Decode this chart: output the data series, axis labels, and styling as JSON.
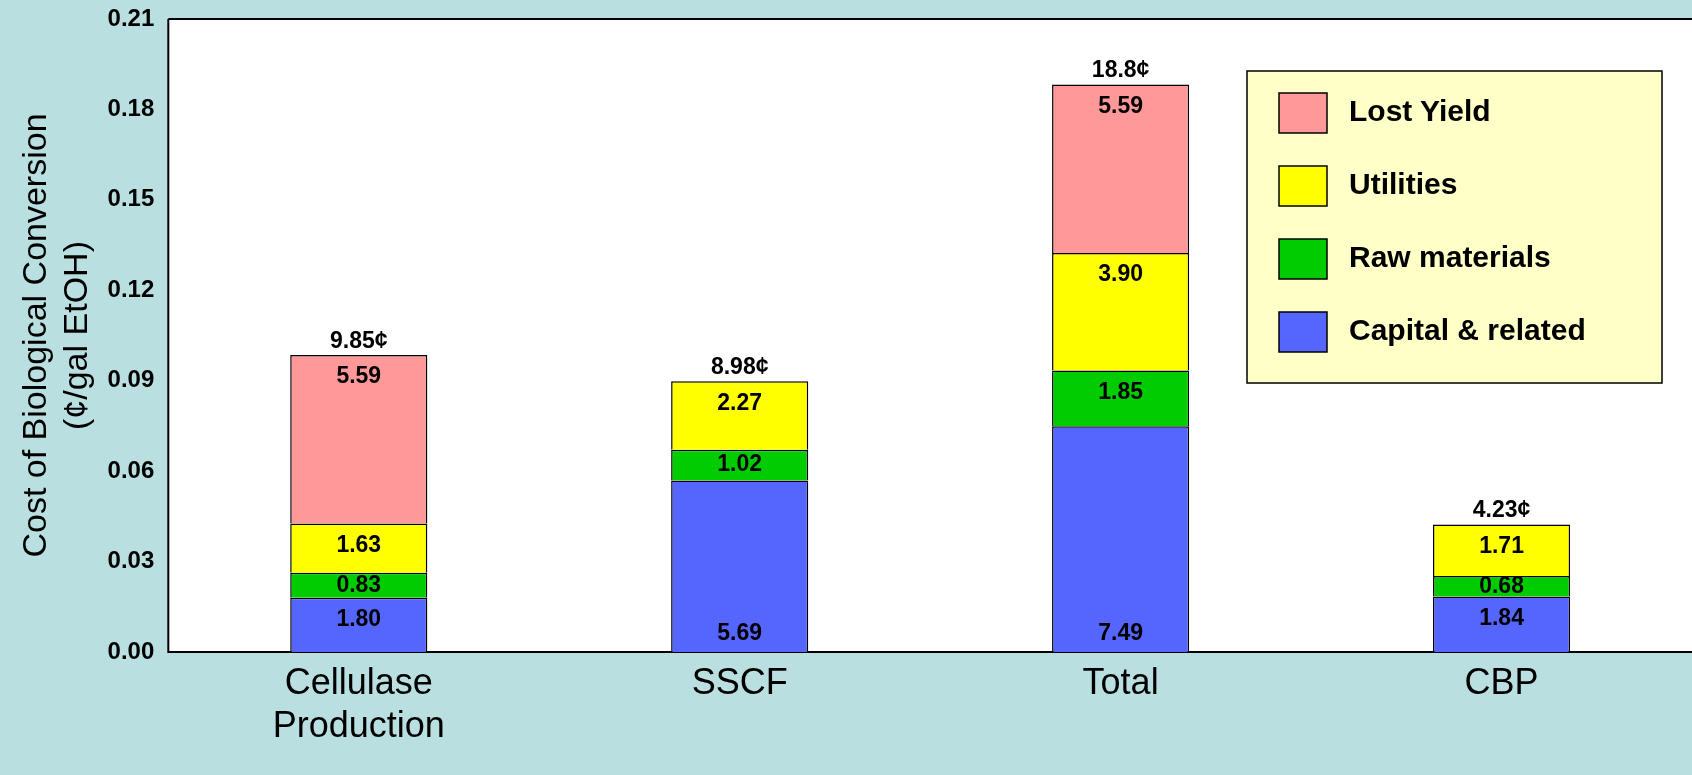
{
  "chart_data": {
    "type": "bar",
    "stacked": true,
    "ylabel": "Cost of Biological Conversion\n(¢/gal EtOH)",
    "categories": [
      "Cellulase\nProduction",
      "SSCF",
      "Total",
      "CBP"
    ],
    "series": [
      {
        "name": "Capital & related",
        "color": "#5566ff",
        "values": [
          0.018,
          0.0569,
          0.0749,
          0.0184
        ]
      },
      {
        "name": "Raw materials",
        "color": "#00cc00",
        "values": [
          0.0083,
          0.0102,
          0.0185,
          0.0068
        ]
      },
      {
        "name": "Utilities",
        "color": "#ffff00",
        "values": [
          0.0163,
          0.0227,
          0.039,
          0.0171
        ]
      },
      {
        "name": "Lost Yield",
        "color": "#ff9999",
        "values": [
          0.0559,
          null,
          0.0559,
          null
        ]
      }
    ],
    "annotations": [
      {
        "text": "1.80",
        "x": "Cellulase\nProduction",
        "y": 0.018
      },
      {
        "text": "0.83",
        "x": "Cellulase\nProduction",
        "y": 0.0263
      },
      {
        "text": "1.63",
        "x": "Cellulase\nProduction",
        "y": 0.0426
      },
      {
        "text": "5.59",
        "x": "Cellulase\nProduction",
        "y": 0.0985
      },
      {
        "text": "5.69",
        "x": "SSCF",
        "y": 0
      },
      {
        "text": "1.02",
        "x": "SSCF",
        "y": 0.0671
      },
      {
        "text": "2.27",
        "x": "SSCF",
        "y": 0.0898
      },
      {
        "text": "7.49",
        "x": "Total",
        "y": 0
      },
      {
        "text": "1.85",
        "x": "Total",
        "y": 0.0934
      },
      {
        "text": "3.90",
        "x": "Total",
        "y": 0.1324
      },
      {
        "text": "5.59",
        "x": "Total",
        "y": 0.1883
      },
      {
        "text": "1.84",
        "x": "CBP",
        "y": 0.0184
      },
      {
        "text": "0.68",
        "x": "CBP",
        "y": 0.0252
      },
      {
        "text": "1.71",
        "x": "CBP",
        "y": 0.0423
      }
    ],
    "totals": [
      "9.85¢",
      "8.98¢",
      "18.8¢",
      "4.23¢"
    ],
    "ylim": [
      0,
      0.21
    ],
    "yticks": [
      {
        "value": 0,
        "label": "0.00"
      },
      {
        "value": 0.03,
        "label": "0.03"
      },
      {
        "value": 0.06,
        "label": "0.06"
      },
      {
        "value": 0.09,
        "label": "0.09"
      },
      {
        "value": 0.12,
        "label": "0.12"
      },
      {
        "value": 0.15,
        "label": "0.15"
      },
      {
        "value": 0.18,
        "label": "0.18"
      },
      {
        "value": 0.21,
        "label": "0.21"
      }
    ],
    "grid": false,
    "legend": "top right"
  }
}
